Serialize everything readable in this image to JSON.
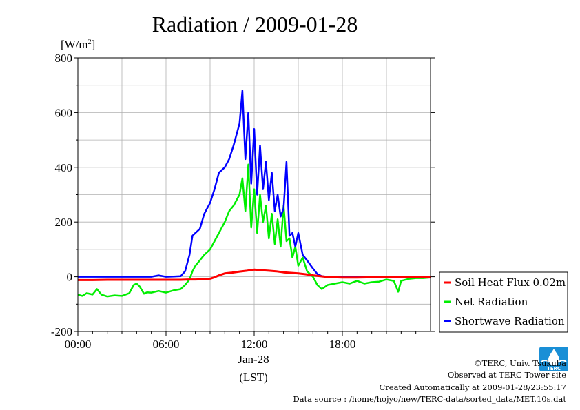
{
  "chart_data": {
    "type": "line",
    "title": "Radiation / 2009-01-28",
    "ylabel": "[W/m²]",
    "xlabel": "(LST)",
    "date_label": "Jan-28",
    "xlim": [
      0,
      24
    ],
    "ylim": [
      -200,
      800
    ],
    "yticks": [
      "-200",
      "0",
      "200",
      "400",
      "600",
      "800"
    ],
    "xticks": [
      {
        "h": 0,
        "label": "00:00"
      },
      {
        "h": 6,
        "label": "06:00"
      },
      {
        "h": 12,
        "label": "12:00"
      },
      {
        "h": 18,
        "label": "18:00"
      }
    ],
    "grid": true,
    "legend_position": "right",
    "series": [
      {
        "name": "Soil Heat Flux 0.02m",
        "color": "#ff0000",
        "x": [
          0,
          1,
          2,
          3,
          4,
          5,
          6,
          7,
          7.5,
          8,
          8.5,
          9,
          9.3,
          9.6,
          10,
          10.5,
          11,
          11.5,
          12,
          12.5,
          13,
          13.5,
          14,
          14.5,
          15,
          15.5,
          16,
          16.5,
          17,
          17.5,
          18,
          19,
          20,
          21,
          22,
          23,
          24
        ],
        "y": [
          -12,
          -12,
          -11,
          -11,
          -11,
          -11,
          -11,
          -11,
          -10,
          -10,
          -9,
          -7,
          -2,
          5,
          12,
          15,
          19,
          22,
          26,
          24,
          22,
          20,
          16,
          14,
          12,
          9,
          5,
          2,
          -1,
          -2,
          -3,
          -3,
          -2,
          -2,
          -2,
          -1,
          -1
        ]
      },
      {
        "name": "Net Radiation",
        "color": "#00ee00",
        "x": [
          0,
          0.3,
          0.6,
          1,
          1.3,
          1.6,
          2,
          2.5,
          3,
          3.5,
          3.8,
          4,
          4.2,
          4.5,
          4.7,
          5,
          5.5,
          6,
          6.5,
          7,
          7.3,
          7.6,
          7.8,
          8,
          8.3,
          8.6,
          9,
          9.3,
          9.6,
          10,
          10.3,
          10.6,
          11,
          11.2,
          11.4,
          11.6,
          11.8,
          12,
          12.2,
          12.4,
          12.6,
          12.8,
          13,
          13.2,
          13.4,
          13.6,
          13.8,
          14,
          14.2,
          14.4,
          14.6,
          14.8,
          15,
          15.3,
          15.6,
          16,
          16.3,
          16.6,
          17,
          17.5,
          18,
          18.5,
          19,
          19.5,
          20,
          20.5,
          21,
          21.5,
          21.8,
          22,
          22.5,
          23,
          23.5,
          24
        ],
        "y": [
          -65,
          -70,
          -60,
          -65,
          -45,
          -65,
          -72,
          -68,
          -70,
          -60,
          -30,
          -25,
          -35,
          -62,
          -57,
          -58,
          -52,
          -58,
          -50,
          -45,
          -30,
          -10,
          20,
          40,
          60,
          80,
          100,
          130,
          160,
          200,
          240,
          260,
          300,
          360,
          240,
          410,
          180,
          320,
          160,
          300,
          200,
          260,
          140,
          230,
          120,
          210,
          110,
          260,
          130,
          140,
          70,
          110,
          40,
          70,
          20,
          0,
          -30,
          -45,
          -30,
          -25,
          -20,
          -25,
          -15,
          -25,
          -20,
          -18,
          -10,
          -15,
          -55,
          -15,
          -8,
          -5,
          -5,
          -3
        ]
      },
      {
        "name": "Shortwave Radiation",
        "color": "#0000ff",
        "x": [
          0,
          1,
          2,
          3,
          4,
          5,
          5.5,
          6,
          7,
          7.3,
          7.6,
          7.8,
          8,
          8.3,
          8.6,
          9,
          9.3,
          9.6,
          10,
          10.3,
          10.6,
          11,
          11.2,
          11.4,
          11.6,
          11.8,
          12,
          12.2,
          12.4,
          12.6,
          12.8,
          13,
          13.2,
          13.4,
          13.6,
          13.8,
          14,
          14.2,
          14.4,
          14.6,
          14.8,
          15,
          15.3,
          15.6,
          16,
          16.3,
          16.6,
          17,
          17.5,
          18,
          19,
          20,
          21,
          22,
          23,
          24
        ],
        "y": [
          0,
          0,
          0,
          0,
          0,
          0,
          5,
          0,
          2,
          20,
          80,
          150,
          160,
          175,
          230,
          270,
          320,
          380,
          400,
          430,
          480,
          560,
          680,
          430,
          600,
          340,
          540,
          300,
          480,
          320,
          420,
          280,
          380,
          240,
          300,
          220,
          250,
          420,
          150,
          160,
          110,
          160,
          80,
          60,
          30,
          10,
          2,
          0,
          0,
          0,
          0,
          0,
          0,
          0,
          0,
          0
        ]
      }
    ]
  },
  "credits": [
    "©TERC, Univ. Tsukuba",
    "Observed at TERC Tower site",
    "Created Automatically at 2009-01-28/23:55:17",
    "Data source : /home/hojyo/new/TERC-data/sorted_data/MET.10s.dat"
  ],
  "logo": {
    "text": "TERC",
    "color": "#1a8fd6"
  }
}
